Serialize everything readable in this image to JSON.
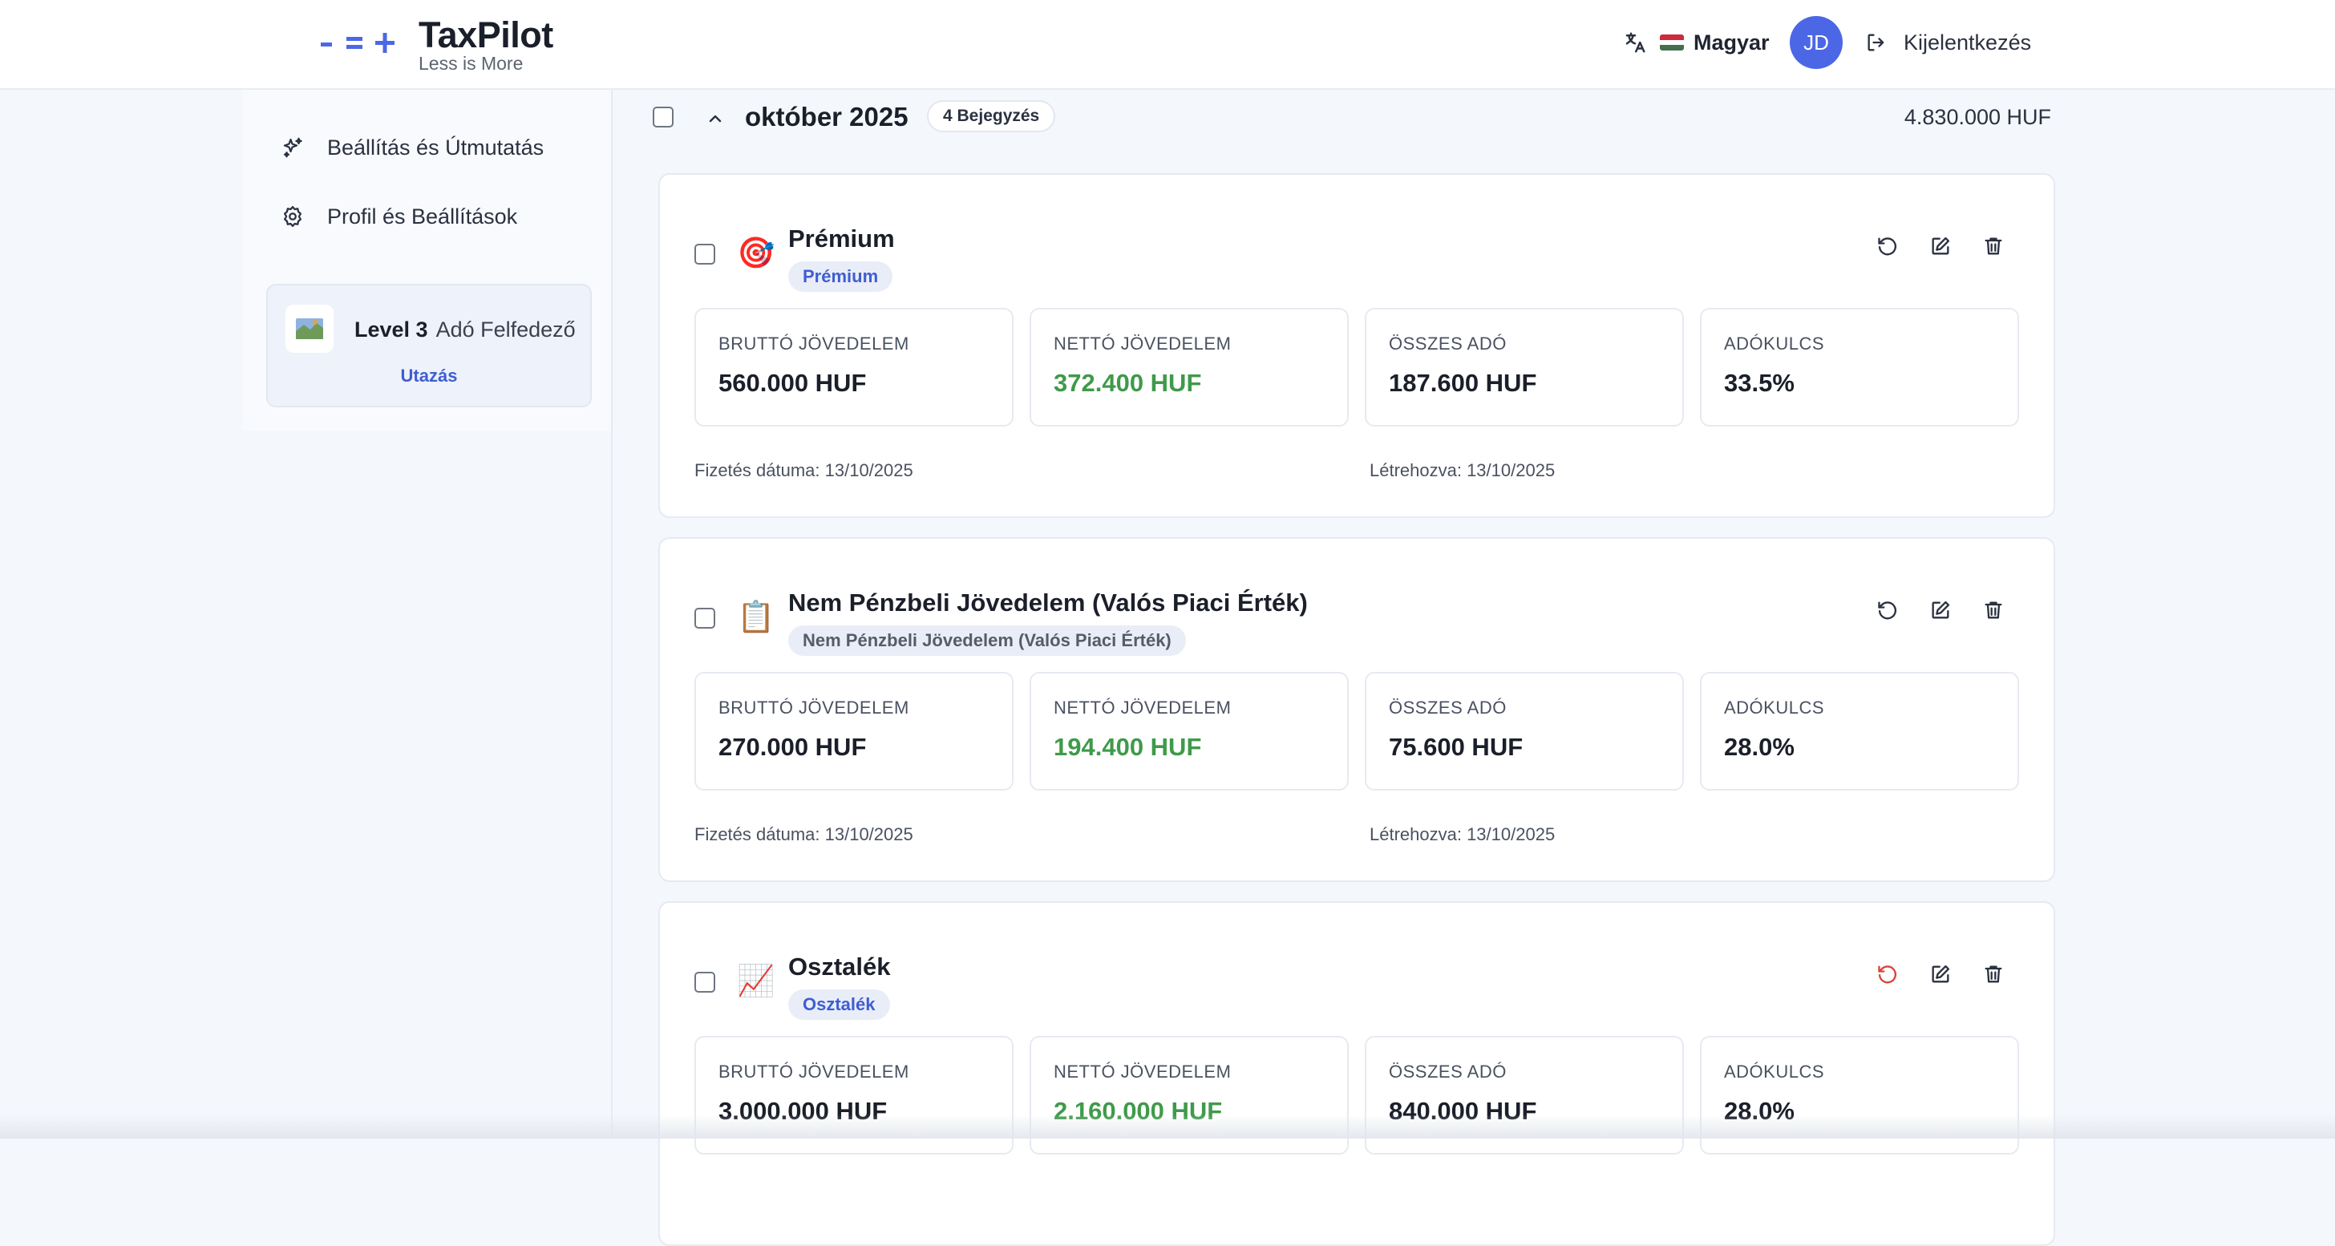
{
  "header": {
    "brand": "TaxPilot",
    "tagline": "Less is More",
    "language": "Magyar",
    "avatar_initials": "JD",
    "logout_label": "Kijelentkezés",
    "accent_color": "#4c67e6"
  },
  "sidebar": {
    "items": [
      {
        "label": "Beállítás és Útmutatás",
        "icon": "sparkles-icon"
      },
      {
        "label": "Profil és Beállítások",
        "icon": "gear-icon"
      }
    ],
    "level": {
      "level_label": "Level 3",
      "title": "Adó Felfedező",
      "link": "Utazás",
      "icon": "map-icon"
    }
  },
  "month": {
    "title": "október 2025",
    "count_badge": "4 Bejegyzés",
    "total": "4.830.000 HUF"
  },
  "entries": [
    {
      "emoji": "🎯",
      "title": "Prémium",
      "tag": "Prémium",
      "tag_color": "#3f5ed1",
      "stats": [
        {
          "label": "BRUTTÓ JÖVEDELEM",
          "value": "560.000 HUF"
        },
        {
          "label": "NETTÓ JÖVEDELEM",
          "value": "372.400 HUF"
        },
        {
          "label": "ÖSSZES ADÓ",
          "value": "187.600 HUF"
        },
        {
          "label": "ADÓKULCS",
          "value": "33.5%"
        }
      ],
      "payment_date": "Fizetés dátuma: 13/10/2025",
      "created": "Létrehozva: 13/10/2025"
    },
    {
      "emoji": "📋",
      "title": "Nem Pénzbeli Jövedelem (Valós Piaci Érték)",
      "tag": "Nem Pénzbeli Jövedelem (Valós Piaci Érték)",
      "tag_color": "#555c69",
      "stats": [
        {
          "label": "BRUTTÓ JÖVEDELEM",
          "value": "270.000 HUF"
        },
        {
          "label": "NETTÓ JÖVEDELEM",
          "value": "194.400 HUF"
        },
        {
          "label": "ÖSSZES ADÓ",
          "value": "75.600 HUF"
        },
        {
          "label": "ADÓKULCS",
          "value": "28.0%"
        }
      ],
      "payment_date": "Fizetés dátuma: 13/10/2025",
      "created": "Létrehozva: 13/10/2025"
    },
    {
      "emoji": "📈",
      "title": "Osztalék",
      "tag": "Osztalék",
      "tag_color": "#3f5ed1",
      "stats": [
        {
          "label": "BRUTTÓ JÖVEDELEM",
          "value": "3.000.000 HUF"
        },
        {
          "label": "NETTÓ JÖVEDELEM",
          "value": "2.160.000 HUF"
        },
        {
          "label": "ÖSSZES ADÓ",
          "value": "840.000 HUF"
        },
        {
          "label": "ADÓKULCS",
          "value": "28.0%"
        }
      ]
    }
  ],
  "colors": {
    "net_income": "#3f9a4a",
    "reset_highlight": "#d9443b"
  }
}
